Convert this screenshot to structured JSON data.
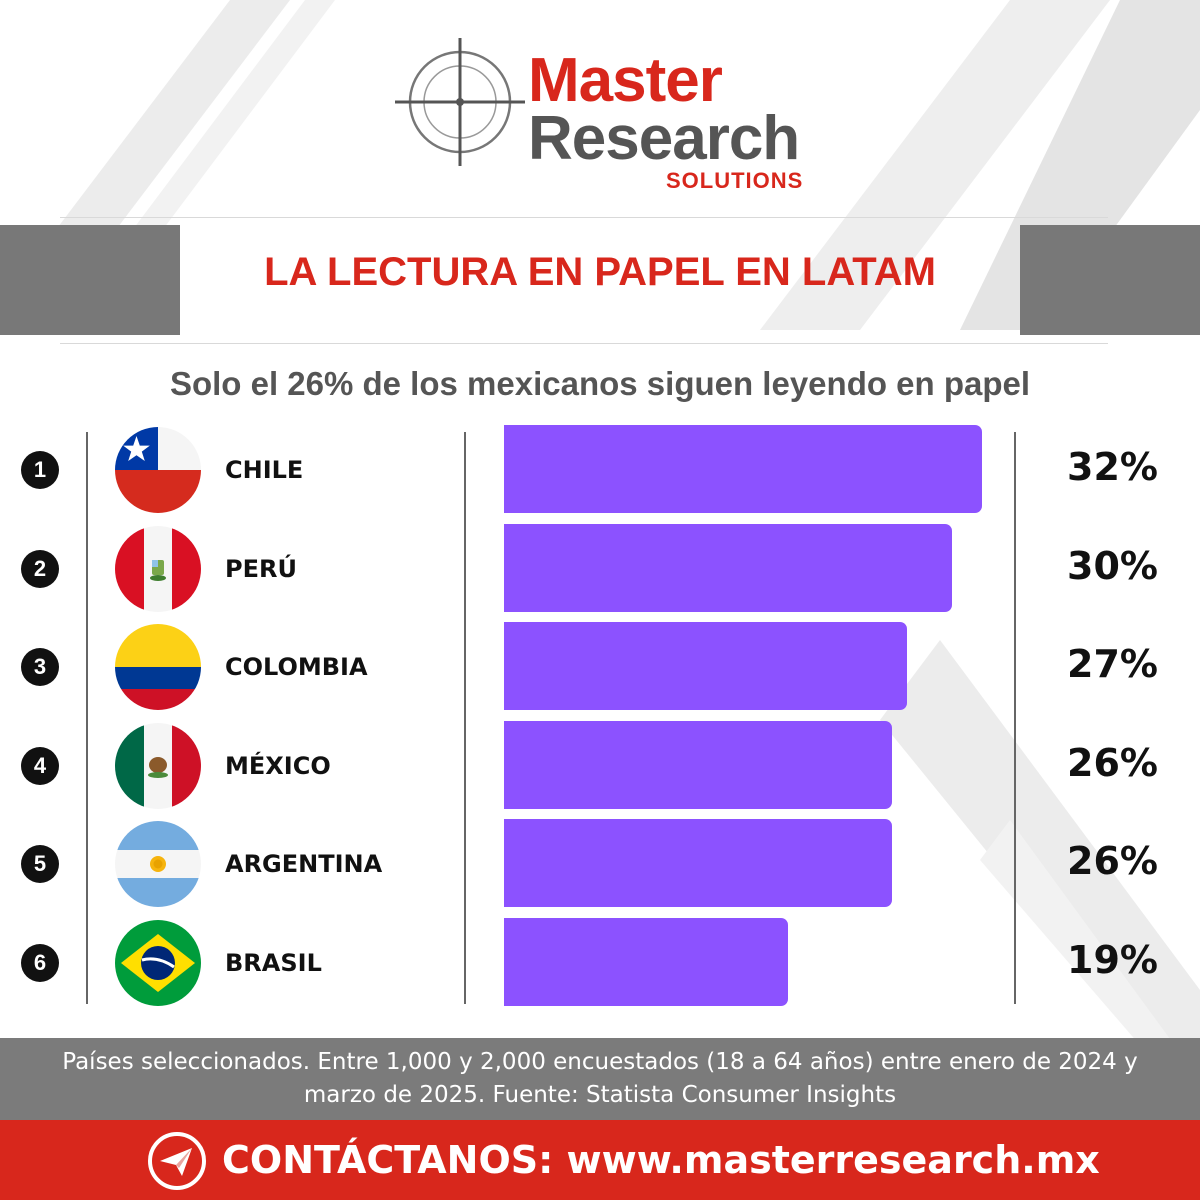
{
  "brand": {
    "line1": "Master",
    "line2": "Research",
    "line3": "SOLUTIONS"
  },
  "colors": {
    "brand_red": "#d8271c",
    "brand_grey": "#555555",
    "bar": "#8c52ff",
    "footnote_bg": "#7b7b7b"
  },
  "chart_data": {
    "type": "bar",
    "orientation": "horizontal",
    "title": "LA LECTURA EN PAPEL EN LATAM",
    "subtitle": "Solo el 26% de los mexicanos siguen leyendo en papel",
    "unit": "%",
    "xlim": [
      0,
      32
    ],
    "grid": false,
    "legend": "none",
    "categories": [
      "CHILE",
      "PERÚ",
      "COLOMBIA",
      "MÉXICO",
      "ARGENTINA",
      "BRASIL"
    ],
    "ranks": [
      "1",
      "2",
      "3",
      "4",
      "5",
      "6"
    ],
    "flags": [
      "chile-flag-icon",
      "peru-flag-icon",
      "colombia-flag-icon",
      "mexico-flag-icon",
      "argentina-flag-icon",
      "brazil-flag-icon"
    ],
    "values": [
      32,
      30,
      27,
      26,
      26,
      19
    ],
    "value_labels": [
      "32%",
      "30%",
      "27%",
      "26%",
      "26%",
      "19%"
    ]
  },
  "footnote": "Países seleccionados. Entre 1,000 y 2,000 encuestados (18 a 64 años) entre enero de 2024 y marzo de 2025. Fuente: Statista Consumer Insights",
  "contact": {
    "icon": "paper-plane-icon",
    "text": "CONTÁCTANOS: www.masterresearch.mx"
  }
}
